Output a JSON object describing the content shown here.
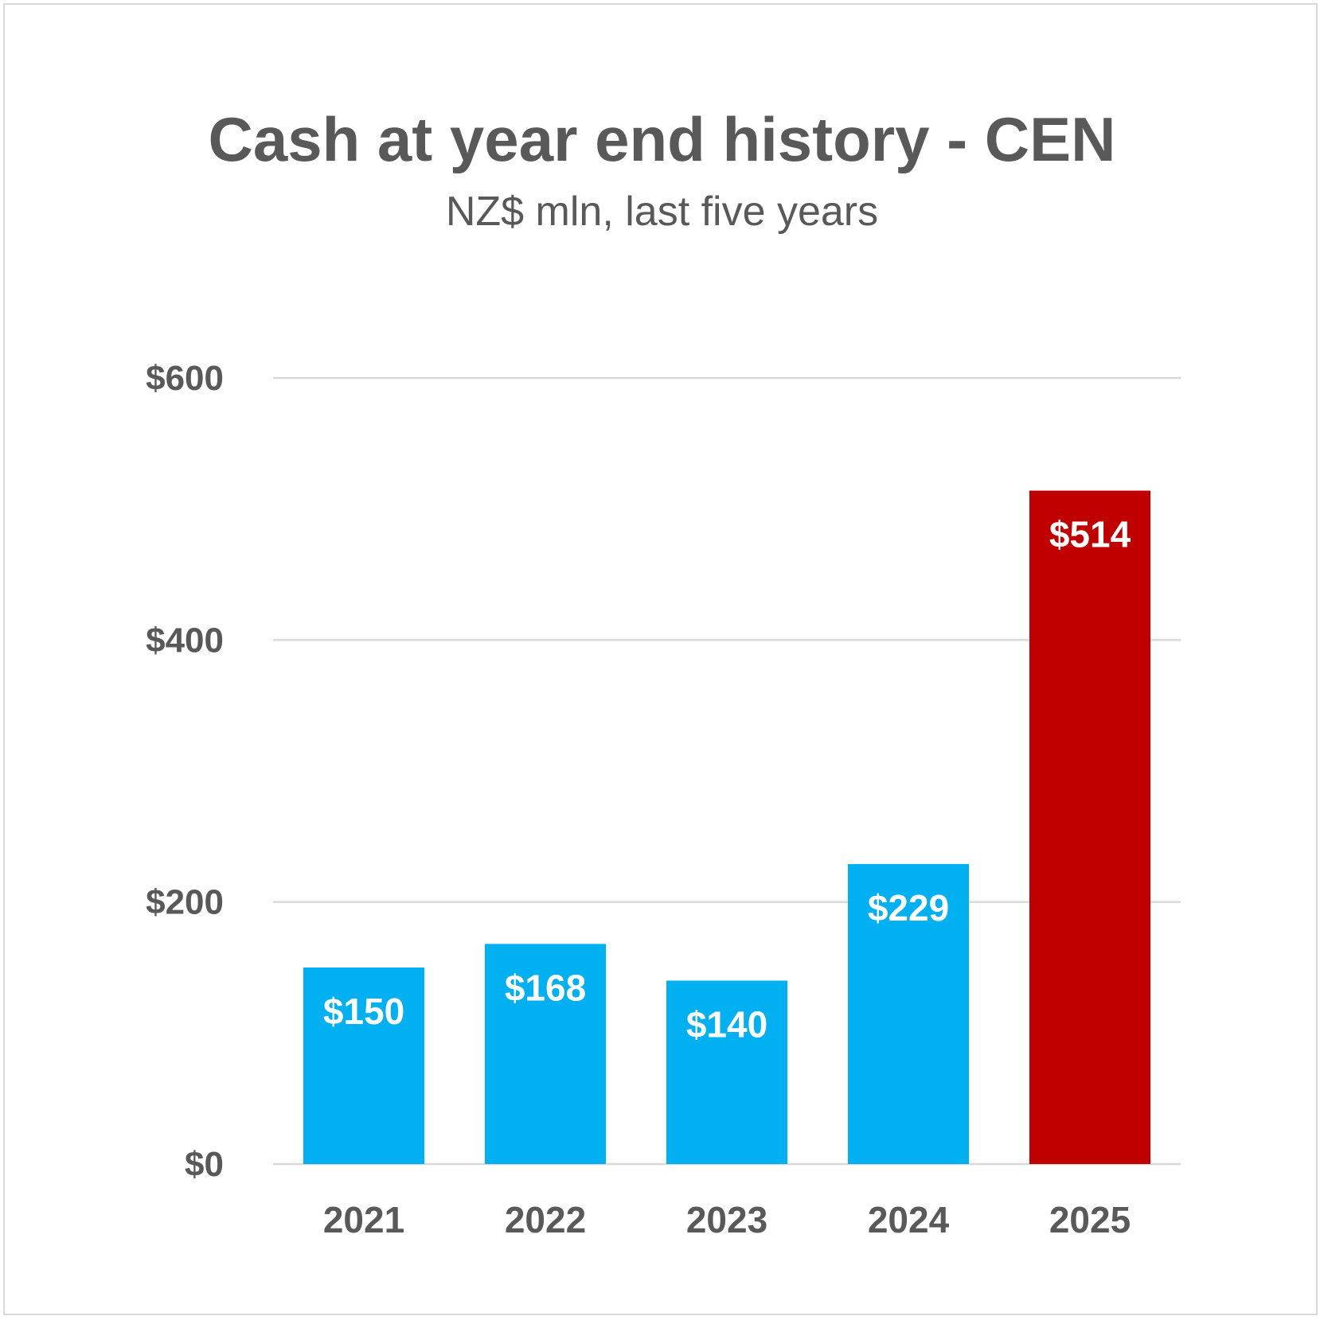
{
  "chart_data": {
    "type": "bar",
    "title": "Cash at year end history - CEN",
    "subtitle": "NZ$ mln, last five years",
    "categories": [
      "2021",
      "2022",
      "2023",
      "2024",
      "2025"
    ],
    "values": [
      150,
      168,
      140,
      229,
      514
    ],
    "data_labels": [
      "$150",
      "$168",
      "$140",
      "$229",
      "$514"
    ],
    "bar_colors": [
      "#00b0f0",
      "#00b0f0",
      "#00b0f0",
      "#00b0f0",
      "#c00000"
    ],
    "ylim": [
      0,
      600
    ],
    "yticks": [
      0,
      200,
      400,
      600
    ],
    "ytick_labels": [
      "$0",
      "$200",
      "$400",
      "$600"
    ],
    "grid": true,
    "gridline_color": "#d9d9d9",
    "text_color": "#595959"
  }
}
